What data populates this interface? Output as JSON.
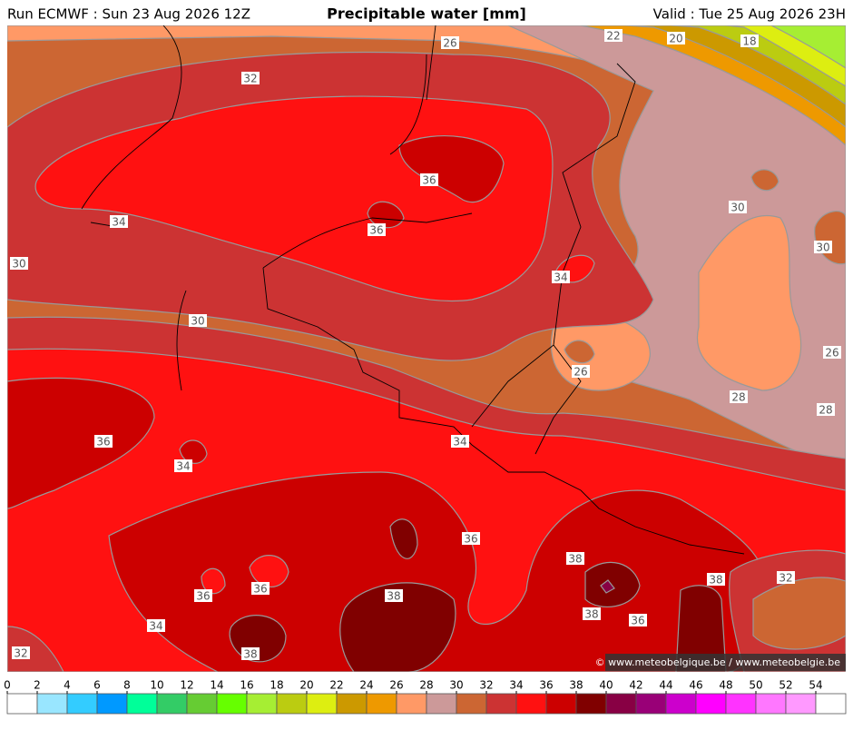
{
  "header": {
    "run": "Run ECMWF : Sun 23 Aug 2026 12Z",
    "title": "Precipitable water [mm]",
    "valid": "Valid : Tue 25 Aug 2026 23H"
  },
  "contour_labels": [
    26,
    22,
    20,
    18,
    32,
    36,
    34,
    36,
    30,
    34,
    30,
    30,
    30,
    26,
    26,
    28,
    28,
    36,
    34,
    34,
    36,
    38,
    38,
    32,
    36,
    36,
    38,
    38,
    36,
    34,
    32,
    38
  ],
  "credit": "© www.meteobelgique.be / www.meteobelgie.be",
  "colorbar": {
    "ticks": [
      0,
      2,
      4,
      6,
      8,
      10,
      12,
      14,
      16,
      18,
      20,
      22,
      24,
      26,
      28,
      30,
      32,
      34,
      36,
      38,
      40,
      42,
      44,
      46,
      48,
      50,
      52,
      54
    ],
    "colors": [
      "#ffffff",
      "#99e6ff",
      "#33ccff",
      "#0099ff",
      "#00ff99",
      "#33cc66",
      "#66cc33",
      "#66ff00",
      "#a6ee33",
      "#bbcc11",
      "#ddee11",
      "#cc9900",
      "#ee9900",
      "#ff9966",
      "#cc9999",
      "#cc6633",
      "#cc3333",
      "#ff1111",
      "#cc0000",
      "#800000",
      "#880044",
      "#990077",
      "#cc00cc",
      "#ff00ff",
      "#ff33ff",
      "#ff77ff",
      "#ff99ff",
      "#ffffff"
    ]
  }
}
